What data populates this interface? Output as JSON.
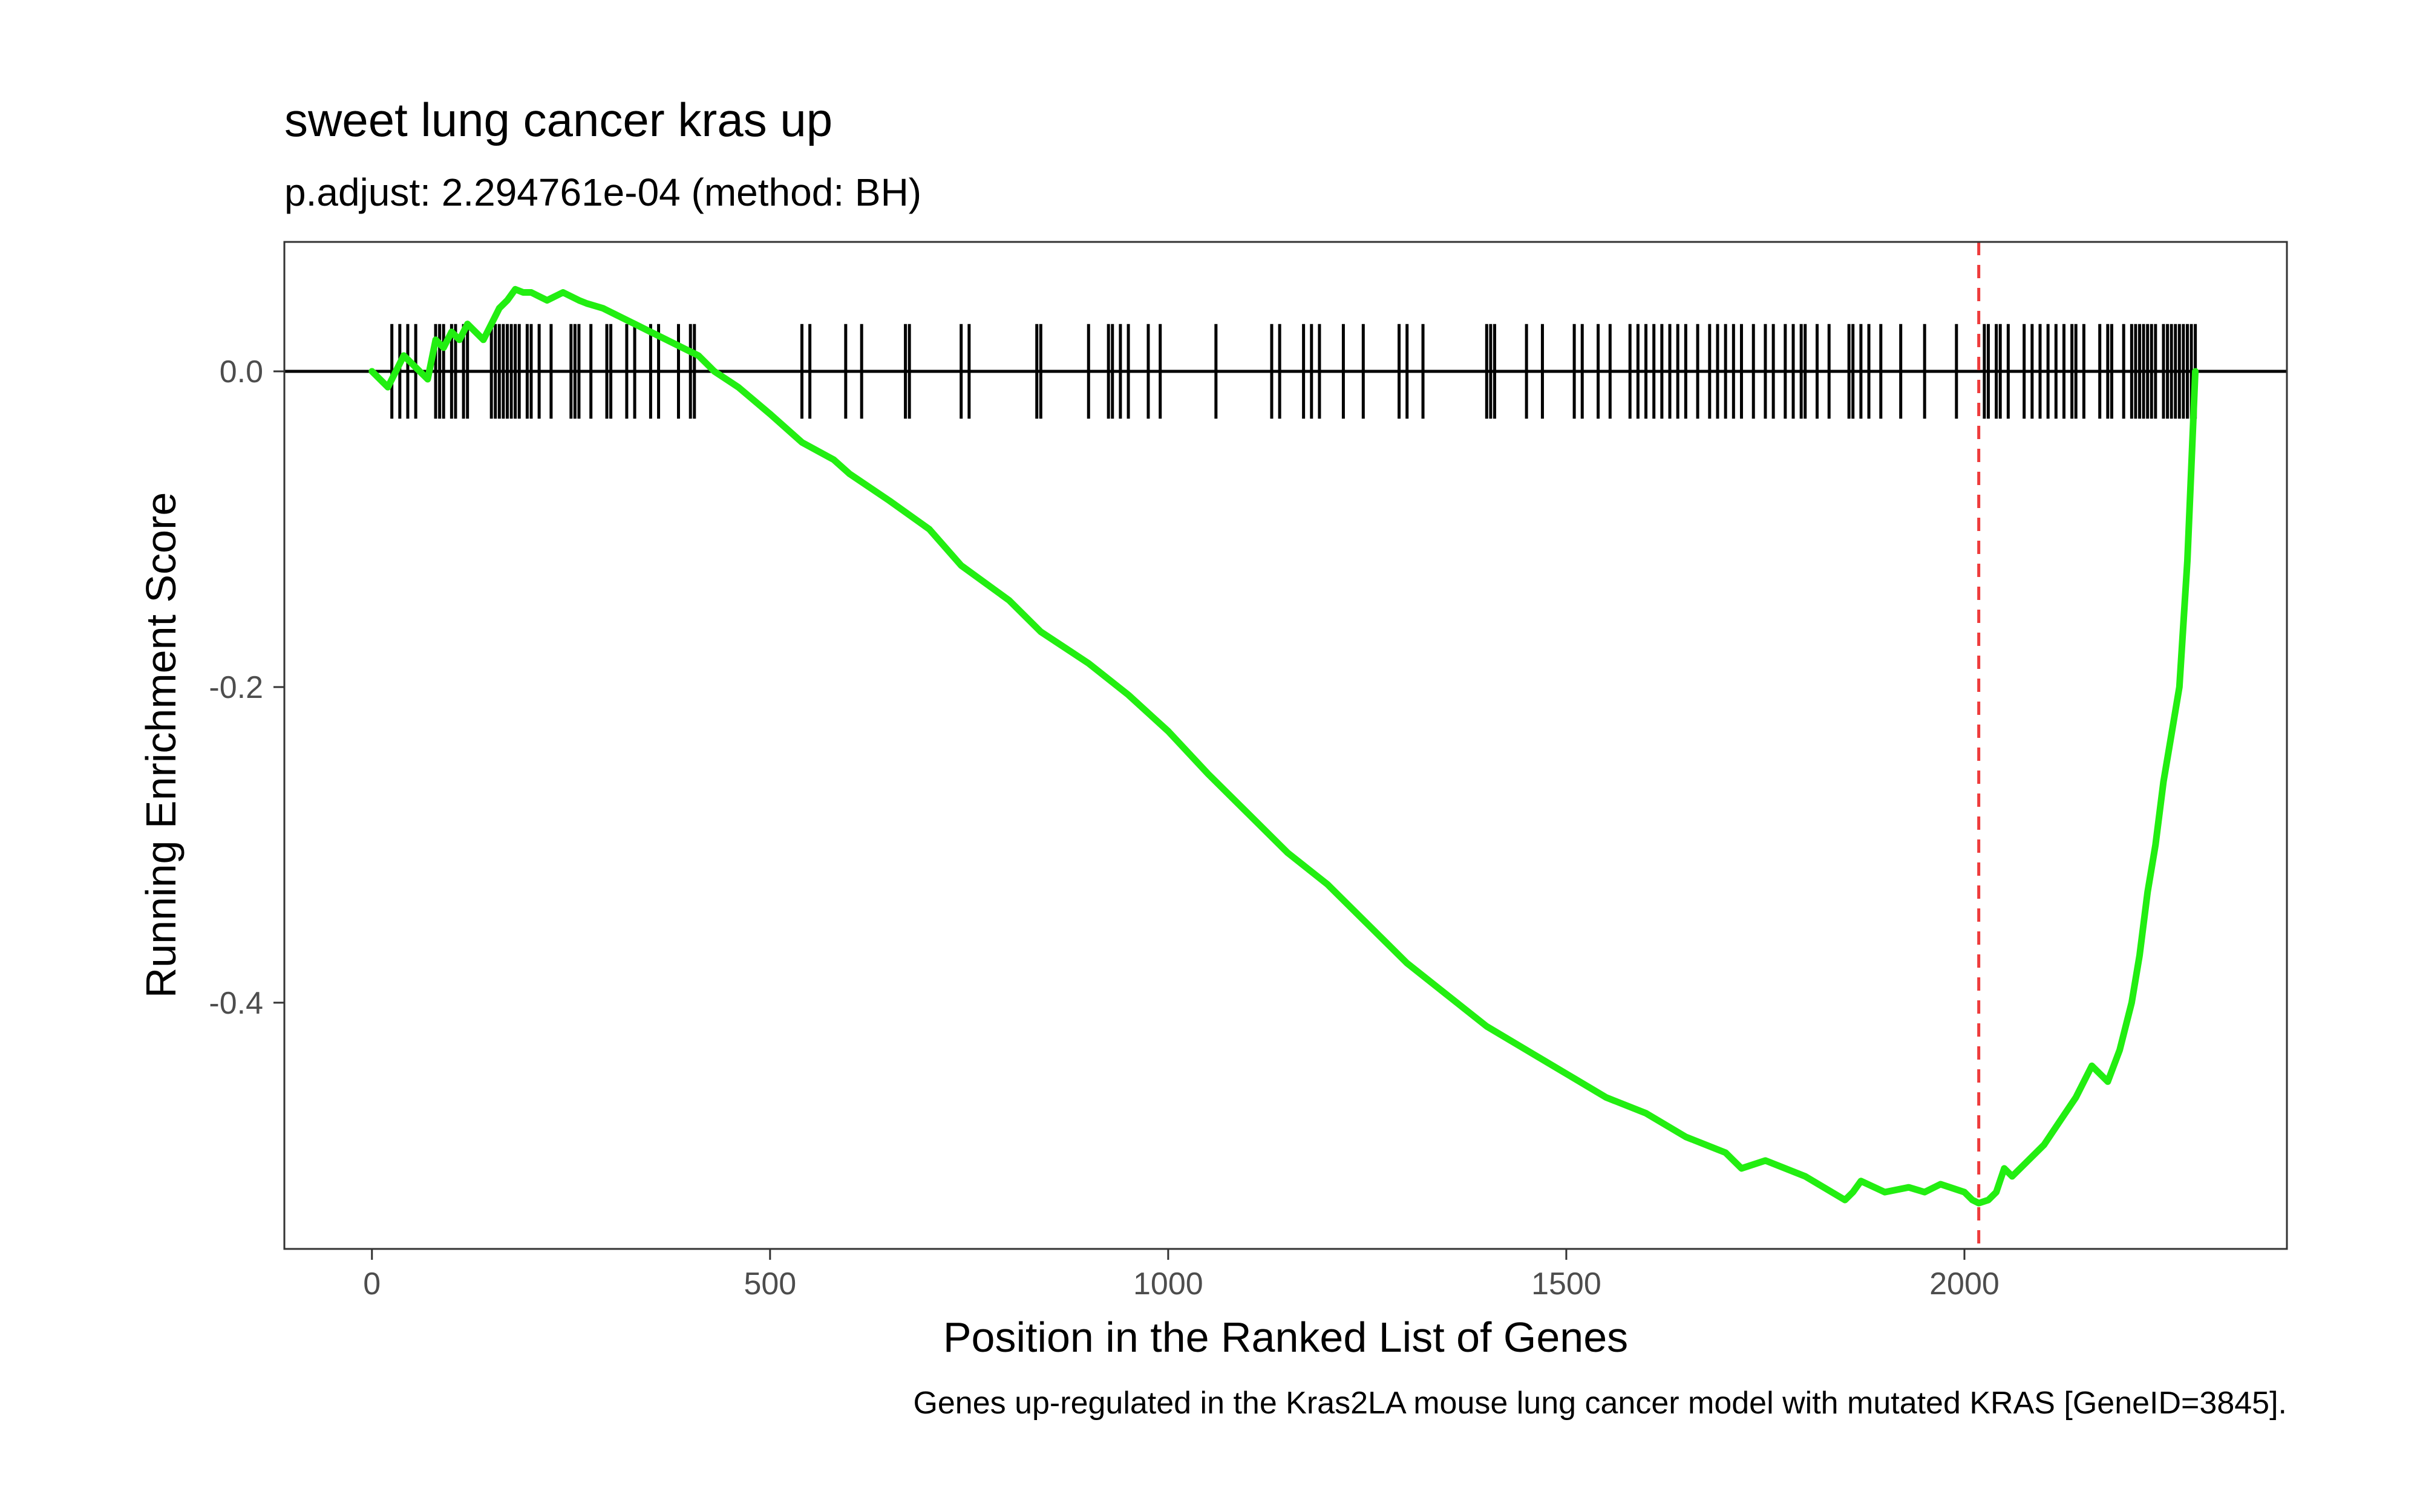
{
  "chart_data": {
    "type": "line",
    "title": "sweet lung cancer kras up",
    "subtitle": "p.adjust: 2.294761e-04 (method: BH)",
    "xlabel": "Position in the Ranked List of Genes",
    "ylabel": "Running Enrichment Score",
    "caption": "Genes up-regulated in the Kras2LA mouse lung cancer model with mutated KRAS [GeneID=3845].",
    "xlim": [
      -110,
      2405
    ],
    "ylim": [
      -0.556,
      0.082
    ],
    "x_ticks": [
      0,
      500,
      1000,
      1500,
      2000
    ],
    "x_tick_labels": [
      "0",
      "500",
      "1000",
      "1500",
      "2000"
    ],
    "y_ticks": [
      0.0,
      -0.2,
      -0.4
    ],
    "y_tick_labels": [
      "0.0",
      "-0.2",
      "-0.4"
    ],
    "grid": false,
    "legend": "none",
    "colors": {
      "line": "#22ee11",
      "hits": "#000000",
      "zero_line": "#000000",
      "max_deviation_line": "#ee3b3b"
    },
    "hit_rug": {
      "y_bottom": -0.03,
      "y_top": 0.03
    },
    "max_deviation_position": 2018,
    "series": [
      {
        "x": [
          0,
          20,
          30,
          40,
          50,
          60,
          70,
          80,
          90,
          100,
          110,
          120,
          130,
          140,
          150,
          160,
          170,
          180,
          190,
          200,
          220,
          240,
          260,
          270,
          290,
          310,
          330,
          350,
          370,
          390,
          410,
          430,
          460,
          500,
          540,
          580,
          600,
          650,
          700,
          740,
          800,
          840,
          900,
          950,
          1000,
          1050,
          1100,
          1150,
          1200,
          1250,
          1300,
          1350,
          1400,
          1450,
          1500,
          1550,
          1600,
          1650,
          1700,
          1720,
          1750,
          1800,
          1850,
          1860,
          1870,
          1900,
          1930,
          1950,
          1970,
          2000,
          2010,
          2018,
          2030,
          2040,
          2050,
          2060,
          2080,
          2100,
          2120,
          2140,
          2160,
          2180,
          2195,
          2210,
          2220,
          2230,
          2240,
          2250,
          2260,
          2270,
          2275,
          2280,
          2285,
          2290
        ],
        "values": [
          0.0,
          -0.01,
          0.0,
          0.01,
          0.005,
          0.0,
          -0.005,
          0.02,
          0.015,
          0.025,
          0.02,
          0.03,
          0.025,
          0.02,
          0.03,
          0.04,
          0.045,
          0.052,
          0.05,
          0.05,
          0.045,
          0.05,
          0.045,
          0.043,
          0.04,
          0.035,
          0.03,
          0.025,
          0.02,
          0.015,
          0.01,
          0.0,
          -0.01,
          -0.027,
          -0.045,
          -0.056,
          -0.065,
          -0.082,
          -0.1,
          -0.123,
          -0.145,
          -0.165,
          -0.185,
          -0.205,
          -0.228,
          -0.255,
          -0.28,
          -0.305,
          -0.325,
          -0.35,
          -0.375,
          -0.395,
          -0.415,
          -0.43,
          -0.445,
          -0.46,
          -0.47,
          -0.485,
          -0.495,
          -0.505,
          -0.5,
          -0.51,
          -0.525,
          -0.52,
          -0.513,
          -0.52,
          -0.517,
          -0.52,
          -0.515,
          -0.52,
          -0.525,
          -0.527,
          -0.525,
          -0.52,
          -0.505,
          -0.51,
          -0.5,
          -0.49,
          -0.475,
          -0.46,
          -0.44,
          -0.45,
          -0.43,
          -0.4,
          -0.37,
          -0.33,
          -0.3,
          -0.26,
          -0.23,
          -0.2,
          -0.16,
          -0.12,
          -0.06,
          0.0
        ]
      }
    ],
    "hits": [
      25,
      35,
      45,
      55,
      80,
      85,
      90,
      100,
      105,
      115,
      120,
      150,
      155,
      160,
      165,
      170,
      175,
      180,
      185,
      195,
      200,
      210,
      225,
      250,
      255,
      260,
      275,
      295,
      300,
      320,
      330,
      350,
      360,
      385,
      400,
      405,
      540,
      550,
      595,
      615,
      670,
      675,
      740,
      750,
      835,
      840,
      900,
      925,
      930,
      940,
      950,
      975,
      990,
      1060,
      1130,
      1140,
      1170,
      1180,
      1190,
      1220,
      1245,
      1290,
      1300,
      1320,
      1400,
      1405,
      1410,
      1450,
      1470,
      1510,
      1520,
      1540,
      1555,
      1580,
      1590,
      1600,
      1610,
      1620,
      1630,
      1640,
      1650,
      1665,
      1680,
      1690,
      1700,
      1710,
      1720,
      1735,
      1750,
      1760,
      1775,
      1785,
      1795,
      1800,
      1815,
      1830,
      1855,
      1860,
      1870,
      1880,
      1895,
      1920,
      1950,
      1990,
      2025,
      2030,
      2040,
      2045,
      2055,
      2075,
      2085,
      2095,
      2105,
      2115,
      2125,
      2135,
      2140,
      2150,
      2170,
      2180,
      2185,
      2200,
      2210,
      2215,
      2220,
      2225,
      2230,
      2235,
      2240,
      2250,
      2255,
      2260,
      2265,
      2270,
      2275,
      2280,
      2285,
      2290
    ]
  }
}
